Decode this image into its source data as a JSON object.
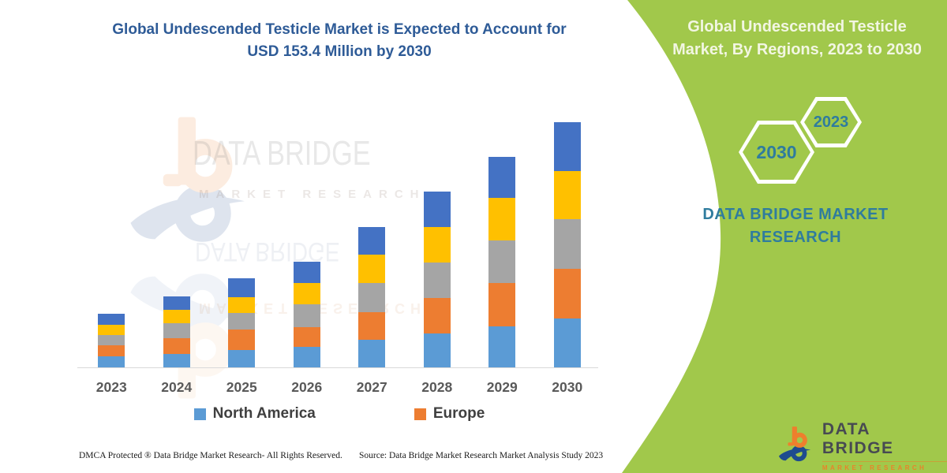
{
  "chart": {
    "title_line1": "Global Undescended Testicle Market is Expected to Account for",
    "title_line2": "USD 153.4 Million by 2030",
    "title_color": "#2E5B97",
    "legend": [
      {
        "label": "North America",
        "color": "#5B9BD5"
      },
      {
        "label": "Europe",
        "color": "#ED7D31"
      }
    ]
  },
  "chart_data": {
    "type": "bar",
    "stacked": true,
    "title": "Global Undescended Testicle Market is Expected to Account for USD 153.4 Million by 2030",
    "unit": "USD Million",
    "categories": [
      "2023",
      "2024",
      "2025",
      "2026",
      "2027",
      "2028",
      "2029",
      "2030"
    ],
    "series": [
      {
        "name": "North America",
        "color": "#5B9BD5",
        "values": [
          6.9,
          8.2,
          10.7,
          13.0,
          17.3,
          21.4,
          25.5,
          30.4
        ]
      },
      {
        "name": "Europe",
        "color": "#ED7D31",
        "values": [
          6.9,
          9.9,
          13.2,
          12.3,
          17.3,
          22.2,
          27.1,
          31.2
        ]
      },
      {
        "name": "(unlabeled gray)",
        "color": "#A5A5A5",
        "values": [
          6.4,
          9.5,
          9.9,
          14.0,
          18.3,
          22.2,
          27.1,
          31.2
        ]
      },
      {
        "name": "(unlabeled yellow)",
        "color": "#FFC000",
        "values": [
          6.4,
          8.6,
          10.2,
          13.7,
          17.8,
          22.2,
          26.3,
          30.0
        ]
      },
      {
        "name": "(unlabeled blue)",
        "color": "#4472C4",
        "values": [
          6.9,
          8.2,
          11.5,
          13.1,
          17.3,
          22.2,
          26.0,
          30.6
        ]
      }
    ],
    "totals": [
      33.5,
      44.4,
      55.5,
      66.1,
      88.0,
      110.2,
      132.0,
      153.4
    ],
    "legend_visible": [
      "North America",
      "Europe"
    ],
    "axes": {
      "x_ticks_visible": true,
      "y_axis_visible": false,
      "gridlines": false
    },
    "ylim": [
      0,
      160
    ],
    "legend_position": "bottom"
  },
  "watermark": {
    "line1": "DATA BRIDGE",
    "line2": "MARKET RESEARCH"
  },
  "side_panel": {
    "bg": "#A1C84B",
    "title": "Global Undescended Testicle Market, By Regions, 2023 to 2030",
    "title_color": "#F2F6E2",
    "hexagon_large_label": "2030",
    "hexagon_small_label": "2023",
    "brand_text": "DATA BRIDGE MARKET RESEARCH",
    "text_color": "#2F7C9E"
  },
  "brand_logo": {
    "name": "DATA BRIDGE",
    "sub": "MARKET RESEARCH",
    "orange": "#EE7F2D",
    "navy": "#1E4B8F",
    "name_color": "#474A52",
    "sub_color": "#E8832A"
  },
  "footer": {
    "left": "DMCA Protected ® Data Bridge Market Research-  All Rights Reserved.",
    "right": "Source: Data Bridge Market Research  Market Analysis Study 2023"
  }
}
